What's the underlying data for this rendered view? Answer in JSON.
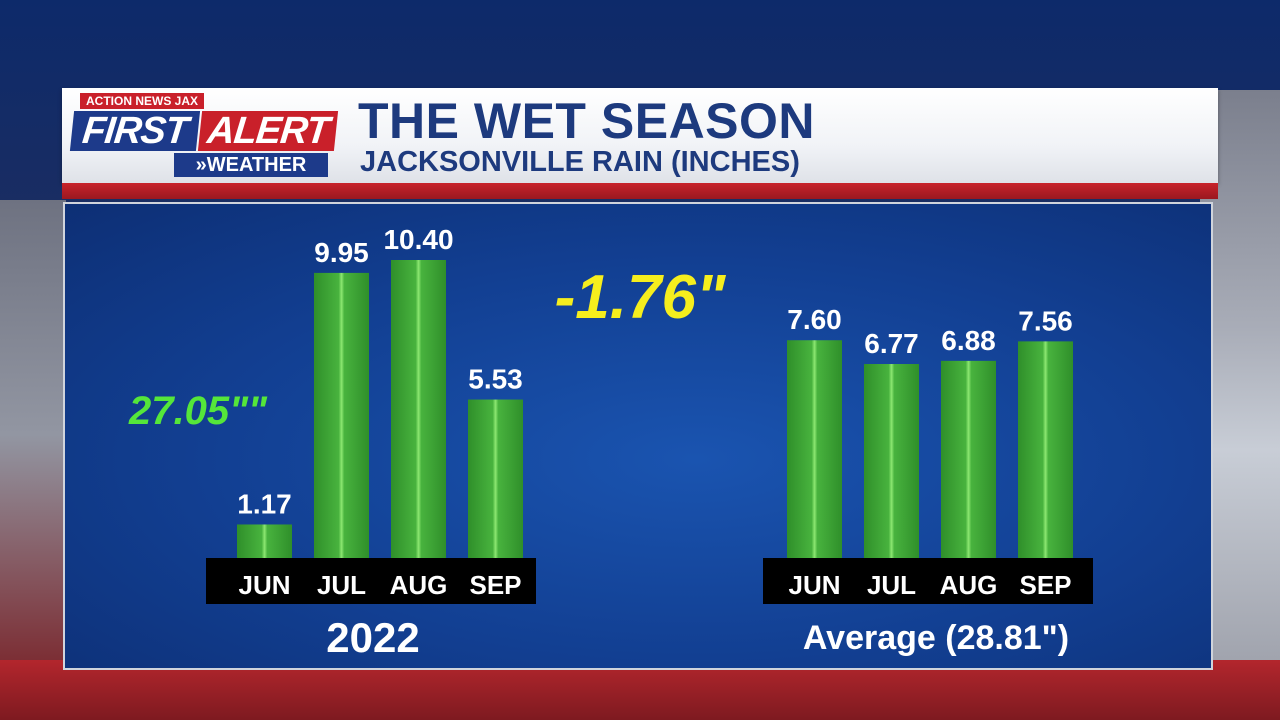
{
  "header": {
    "logo_top": "ACTION NEWS JAX",
    "logo_first": "FIRST",
    "logo_alert": "ALERT",
    "logo_weather": "»WEATHER",
    "title": "THE WET SEASON",
    "subtitle": "JACKSONVILLE RAIN (INCHES)"
  },
  "colors": {
    "bar": "#3aa534",
    "bar_highlight": "#7ee26a",
    "axis_band": "#000000",
    "difference": "#f6ee1d",
    "total": "#55e63a"
  },
  "chart_data": [
    {
      "type": "bar",
      "caption": "2022",
      "categories": [
        "JUN",
        "JUL",
        "AUG",
        "SEP"
      ],
      "values": [
        1.17,
        9.95,
        10.4,
        5.53
      ],
      "value_labels": [
        "1.17",
        "9.95",
        "10.40",
        "5.53"
      ],
      "total_label": "27.05\"\"",
      "ylim": [
        0,
        10.4
      ]
    },
    {
      "type": "bar",
      "caption": "Average (28.81\")",
      "categories": [
        "JUN",
        "JUL",
        "AUG",
        "SEP"
      ],
      "values": [
        7.6,
        6.77,
        6.88,
        7.56
      ],
      "value_labels": [
        "7.60",
        "6.77",
        "6.88",
        "7.56"
      ],
      "ylim": [
        0,
        10.4
      ]
    }
  ],
  "difference_label": "-1.76\""
}
